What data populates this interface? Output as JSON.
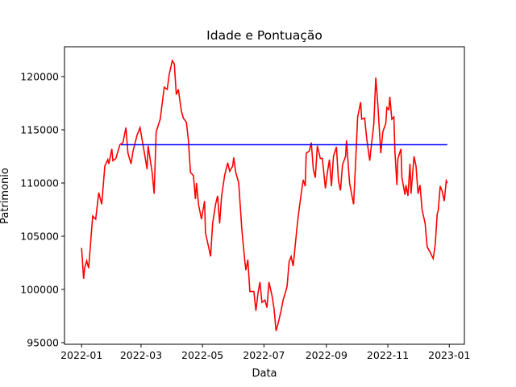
{
  "chart_data": {
    "type": "line",
    "title": "Idade e Pontuação",
    "x_label": "Data",
    "y_label": "Patrimonio",
    "xlim": [
      -17,
      380
    ],
    "xticks": [
      {
        "value": 0,
        "label": "2022-01"
      },
      {
        "value": 59,
        "label": "2022-03"
      },
      {
        "value": 120,
        "label": "2022-05"
      },
      {
        "value": 181,
        "label": "2022-07"
      },
      {
        "value": 243,
        "label": "2022-09"
      },
      {
        "value": 304,
        "label": "2022-11"
      },
      {
        "value": 365,
        "label": "2023-01"
      }
    ],
    "ylim": [
      94850,
      122800
    ],
    "yticks": [
      95000,
      100000,
      105000,
      110000,
      115000,
      120000
    ],
    "series": [
      {
        "color": "#ff0000",
        "x": [
          0,
          2,
          3,
          5,
          7,
          10,
          11,
          14,
          17,
          20,
          23,
          26,
          27,
          30,
          31,
          34,
          38,
          41,
          44,
          46,
          49,
          51,
          55,
          58,
          62,
          65,
          66,
          70,
          72,
          74,
          78,
          80,
          82,
          85,
          87,
          90,
          92,
          94,
          96,
          99,
          101,
          104,
          106,
          108,
          111,
          113,
          114,
          116,
          119,
          122,
          123,
          126,
          128,
          130,
          133,
          135,
          137,
          139,
          142,
          145,
          147,
          150,
          151,
          153,
          156,
          159,
          162,
          163,
          165,
          167,
          171,
          173,
          175,
          177,
          179,
          182,
          184,
          186,
          189,
          191,
          193,
          195,
          198,
          200,
          202,
          204,
          206,
          208,
          210,
          214,
          216,
          218,
          220,
          222,
          223,
          226,
          228,
          230,
          232,
          234,
          237,
          239,
          242,
          244,
          246,
          248,
          250,
          253,
          255,
          257,
          259,
          262,
          263,
          265,
          266,
          269,
          270,
          272,
          274,
          277,
          278,
          281,
          283,
          286,
          287,
          290,
          292,
          294,
          297,
          299,
          302,
          303,
          305,
          306,
          308,
          310,
          311,
          313,
          314,
          317,
          318,
          321,
          322,
          324,
          326,
          327,
          330,
          332,
          334,
          336,
          338,
          341,
          343,
          346,
          349,
          351,
          353,
          354,
          356,
          358,
          360,
          362,
          363
        ],
        "values": [
          103900,
          101000,
          102000,
          102700,
          102000,
          105700,
          106900,
          106600,
          109100,
          108000,
          111600,
          112200,
          111800,
          113200,
          112100,
          112300,
          113600,
          113800,
          115200,
          112800,
          111800,
          113000,
          114500,
          115200,
          113000,
          111300,
          113500,
          111000,
          109000,
          114800,
          116000,
          117500,
          119000,
          118800,
          120200,
          121500,
          121200,
          118300,
          118800,
          116800,
          116100,
          115700,
          114000,
          111000,
          110700,
          108500,
          110000,
          108000,
          106600,
          108300,
          105300,
          104000,
          103100,
          106200,
          108000,
          108800,
          106200,
          108800,
          110700,
          111900,
          111100,
          111600,
          112400,
          111000,
          110000,
          105700,
          102700,
          101800,
          102800,
          99800,
          99800,
          98000,
          99600,
          100700,
          98800,
          99000,
          98300,
          100700,
          99400,
          98200,
          96100,
          96800,
          98000,
          99000,
          99600,
          100300,
          102600,
          103100,
          102200,
          106000,
          107600,
          109000,
          110300,
          109700,
          112800,
          113000,
          113800,
          111300,
          110500,
          113500,
          112300,
          112300,
          109500,
          111000,
          112200,
          109700,
          112500,
          113400,
          110200,
          109300,
          111700,
          112500,
          114000,
          111300,
          110000,
          108500,
          108000,
          112000,
          116200,
          117600,
          116000,
          116100,
          114200,
          112100,
          113000,
          115500,
          119900,
          117400,
          112800,
          114800,
          115600,
          117100,
          116900,
          118100,
          116000,
          116200,
          113000,
          109800,
          112300,
          113200,
          110500,
          108900,
          109800,
          108800,
          111800,
          109000,
          112500,
          111600,
          109000,
          109800,
          107500,
          106200,
          104000,
          103500,
          102900,
          104200,
          107100,
          107400,
          109700,
          109200,
          108300,
          110200,
          110000
        ]
      },
      {
        "color": "#0000ff",
        "x": [
          39,
          363
        ],
        "values": [
          113600,
          113600
        ]
      }
    ]
  }
}
